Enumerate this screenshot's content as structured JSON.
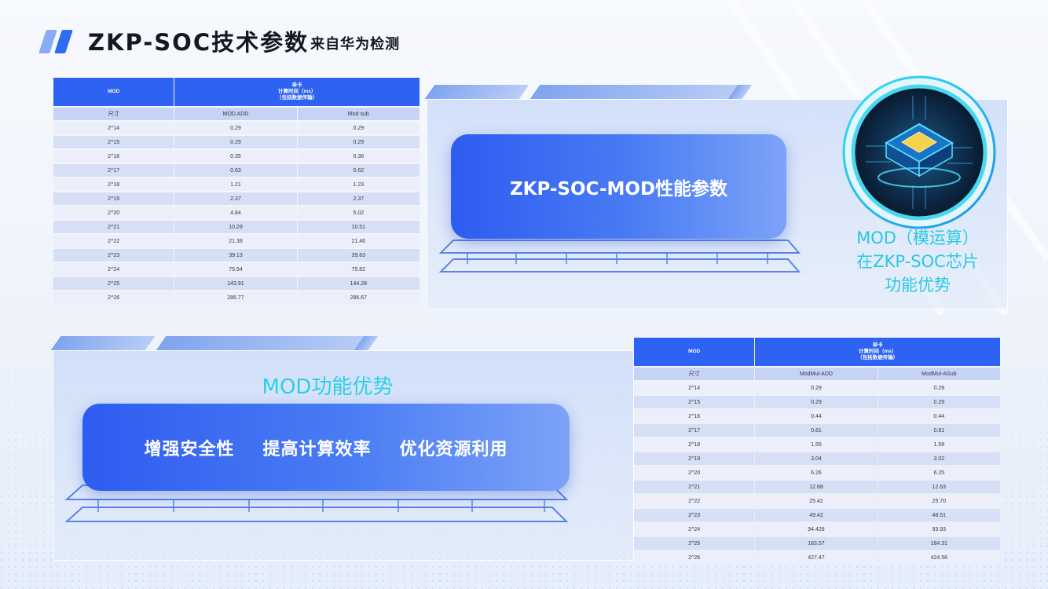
{
  "title": {
    "main": "ZKP-SOC技术参数",
    "sub": "来自华为检测"
  },
  "table1": {
    "head_left": "MOD",
    "head_right": [
      "单卡",
      "计算时间（ms）",
      "（包括数据传输）"
    ],
    "subheader": [
      "尺寸",
      "MOD ADD",
      "Mod sub"
    ],
    "rows": [
      [
        "2^14",
        "0.29",
        "0.29"
      ],
      [
        "2^15",
        "0.29",
        "0.29"
      ],
      [
        "2^16",
        "0.35",
        "0.36"
      ],
      [
        "2^17",
        "0.63",
        "0.62"
      ],
      [
        "2^18",
        "1.21",
        "1.23"
      ],
      [
        "2^19",
        "2.37",
        "2.37"
      ],
      [
        "2^20",
        "4.84",
        "5.02"
      ],
      [
        "2^21",
        "10.29",
        "10.51"
      ],
      [
        "2^22",
        "21.38",
        "21.46"
      ],
      [
        "2^23",
        "39.13",
        "39.63"
      ],
      [
        "2^24",
        "75.94",
        "75.82"
      ],
      [
        "2^25",
        "143.91",
        "144.28"
      ],
      [
        "2^26",
        "286.77",
        "286.67"
      ]
    ]
  },
  "table2": {
    "head_left": "MOD",
    "head_right": [
      "单卡",
      "计算时间（ms）",
      "（包括数据传输）"
    ],
    "subheader": [
      "尺寸",
      "ModMul-ADD",
      "ModMul-ASub"
    ],
    "rows": [
      [
        "2^14",
        "0.29",
        "0.29"
      ],
      [
        "2^15",
        "0.29",
        "0.29"
      ],
      [
        "2^16",
        "0.44",
        "0.44"
      ],
      [
        "2^17",
        "0.81",
        "0.81"
      ],
      [
        "2^18",
        "1.55",
        "1.58"
      ],
      [
        "2^19",
        "3.04",
        "3.02"
      ],
      [
        "2^20",
        "6.26",
        "6.25"
      ],
      [
        "2^21",
        "12.88",
        "12.63"
      ],
      [
        "2^22",
        "25.42",
        "25.70"
      ],
      [
        "2^23",
        "49.42",
        "48.51"
      ],
      [
        "2^24",
        "94.428",
        "93.93"
      ],
      [
        "2^25",
        "183.57",
        "184.31"
      ],
      [
        "2^26",
        "427.47",
        "424.58"
      ]
    ]
  },
  "panel_top": {
    "box_text": "ZKP-SOC-MOD性能参数",
    "caption": [
      "MOD（模运算）",
      "在ZKP-SOC芯片",
      "功能优势"
    ]
  },
  "panel_bottom": {
    "heading": "MOD功能优势",
    "items": [
      "增强安全性",
      "提高计算效率",
      "优化资源利用"
    ]
  },
  "icons": {
    "chip": "chip-icon",
    "title_mark": "double-slash-icon"
  },
  "colors": {
    "accent_blue": "#2d62f2",
    "cyan": "#2ccfe8",
    "title_text": "#141820"
  }
}
